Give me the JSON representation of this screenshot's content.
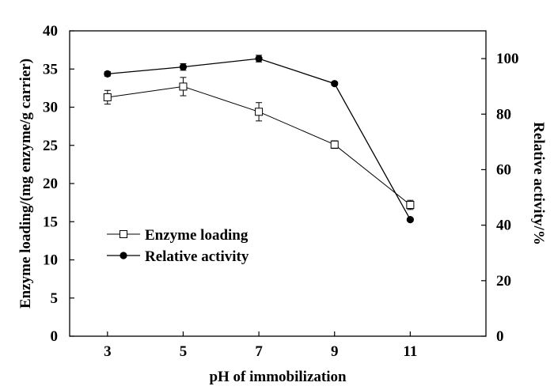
{
  "chart_data": {
    "type": "line",
    "xlabel": "pH of immobilization",
    "ylabel_left": "Enzyme loading/(mg enzyme/g carrier)",
    "ylabel_right": "Relative activity/%",
    "x_ticks": [
      "3",
      "5",
      "7",
      "9",
      "11"
    ],
    "xlim": [
      2,
      13
    ],
    "ylim_left": [
      0,
      40
    ],
    "ylim_right": [
      0,
      110
    ],
    "y_ticks_left": [
      0,
      5,
      10,
      15,
      20,
      25,
      30,
      35,
      40
    ],
    "y_ticks_right": [
      0,
      20,
      40,
      60,
      80,
      100
    ],
    "grid": false,
    "legend_position": "center-left",
    "series": [
      {
        "name": "Enzyme loading",
        "axis": "left",
        "marker": "open-square",
        "x": [
          3,
          5,
          7,
          9,
          11
        ],
        "y": [
          31.3,
          32.7,
          29.4,
          25.1,
          17.2
        ],
        "err": [
          0.9,
          1.2,
          1.2,
          0.5,
          0.6
        ]
      },
      {
        "name": "Relative activity",
        "axis": "right",
        "marker": "filled-circle",
        "x": [
          3,
          5,
          7,
          9,
          11
        ],
        "y": [
          94.5,
          97,
          100,
          91,
          42
        ],
        "err": [
          0.8,
          1.2,
          1.2,
          0.6,
          0.5
        ]
      }
    ]
  }
}
